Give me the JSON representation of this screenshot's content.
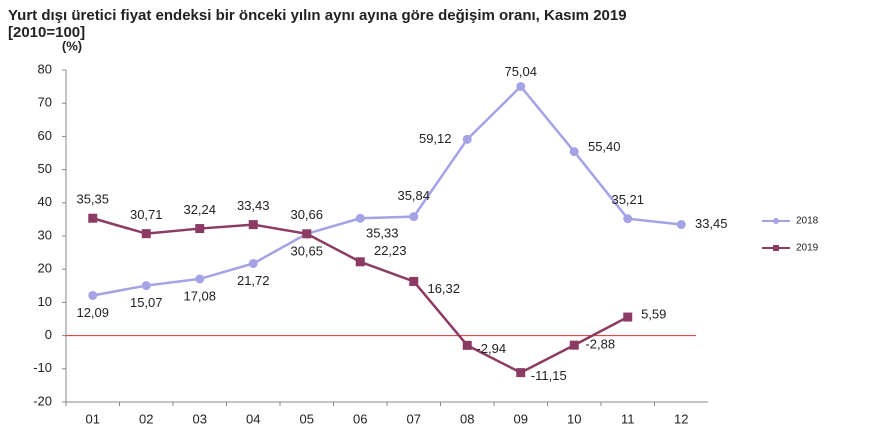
{
  "chart_data": {
    "type": "line",
    "title": "Yurt dışı üretici fiyat endeksi bir önceki yılın aynı ayına göre değişim oranı, Kasım 2019",
    "subtitle": "[2010=100]",
    "y_label": "(%)",
    "categories": [
      "01",
      "02",
      "03",
      "04",
      "05",
      "06",
      "07",
      "08",
      "09",
      "10",
      "11",
      "12"
    ],
    "series": [
      {
        "name": "2018",
        "color": "#a3a3e6",
        "values": [
          12.09,
          15.07,
          17.08,
          21.72,
          30.65,
          35.33,
          35.84,
          59.12,
          75.04,
          55.4,
          35.21,
          33.45
        ],
        "value_labels": [
          "12,09",
          "15,07",
          "17,08",
          "21,72",
          "30,65",
          "35,33",
          "35,84",
          "59,12",
          "75,04",
          "55,40",
          "35,21",
          "33,45"
        ]
      },
      {
        "name": "2019",
        "color": "#8c3b64",
        "values": [
          35.35,
          30.71,
          32.24,
          33.43,
          30.66,
          22.23,
          16.32,
          -2.94,
          -11.15,
          -2.88,
          5.59,
          null
        ],
        "value_labels": [
          "35,35",
          "30,71",
          "32,24",
          "33,43",
          "30,66",
          "22,23",
          "16,32",
          "-2,94",
          "-11,15",
          "-2,88",
          "5,59",
          null
        ]
      }
    ],
    "ylim": [
      -20,
      80
    ],
    "yticks": [
      -20,
      -10,
      0,
      10,
      20,
      30,
      40,
      50,
      60,
      70,
      80
    ],
    "zero_line": true,
    "zero_line_color": "#e03030",
    "legend": "right"
  }
}
